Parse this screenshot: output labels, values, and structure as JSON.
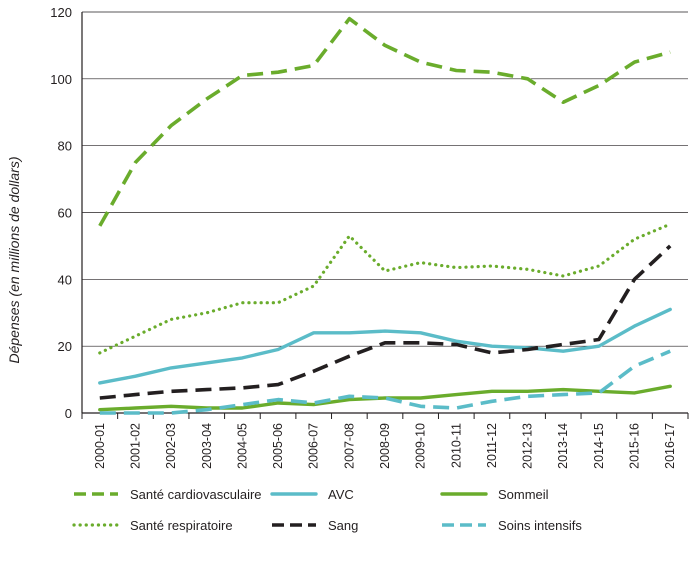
{
  "chart_data": {
    "type": "line",
    "ylabel": "Dépenses (en millions de dollars)",
    "xlabel": "",
    "ylim": [
      0,
      120
    ],
    "yticks": [
      0,
      20,
      40,
      60,
      80,
      100,
      120
    ],
    "grid": "horizontal",
    "legend_position": "bottom",
    "categories": [
      "2000-01",
      "2001-02",
      "2002-03",
      "2003-04",
      "2004-05",
      "2005-06",
      "2006-07",
      "2007-08",
      "2008-09",
      "2009-10",
      "2010-11",
      "2011-12",
      "2012-13",
      "2013-14",
      "2014-15",
      "2015-16",
      "2016-17"
    ],
    "series": [
      {
        "name": "Santé cardiovasculaire",
        "color": "#6aac2c",
        "style": "dashed",
        "values": [
          56,
          75,
          86,
          94,
          101,
          102,
          104,
          118,
          110,
          105,
          102.5,
          102,
          100,
          93,
          98,
          105,
          108
        ]
      },
      {
        "name": "Santé respiratoire",
        "color": "#6aac2c",
        "style": "dotted",
        "values": [
          18,
          23,
          28,
          30,
          33,
          33,
          38,
          53,
          42.5,
          45,
          43.5,
          44,
          43,
          41,
          44,
          52,
          56.5
        ]
      },
      {
        "name": "AVC",
        "color": "#5bbcc8",
        "style": "solid",
        "values": [
          9,
          11,
          13.5,
          15,
          16.5,
          19,
          24,
          24,
          24.5,
          24,
          21.5,
          20,
          19.5,
          18.5,
          20,
          26,
          31
        ]
      },
      {
        "name": "Sang",
        "color": "#231f20",
        "style": "dashed",
        "values": [
          4.5,
          5.5,
          6.5,
          7,
          7.5,
          8.5,
          12.5,
          17,
          21,
          21,
          20.5,
          18,
          19,
          20.5,
          22,
          40,
          50
        ]
      },
      {
        "name": "Sommeil",
        "color": "#6aac2c",
        "style": "solid",
        "values": [
          1,
          1.5,
          2,
          1.5,
          1.5,
          3,
          2.5,
          4,
          4.5,
          4.5,
          5.5,
          6.5,
          6.5,
          7,
          6.5,
          6,
          8
        ]
      },
      {
        "name": "Soins intensifs",
        "color": "#5bbcc8",
        "style": "dashed",
        "values": [
          0,
          0,
          0,
          1,
          2.5,
          4,
          3,
          5,
          4.5,
          2,
          1.5,
          3.5,
          5,
          5.5,
          6,
          14,
          18.5
        ]
      }
    ]
  }
}
